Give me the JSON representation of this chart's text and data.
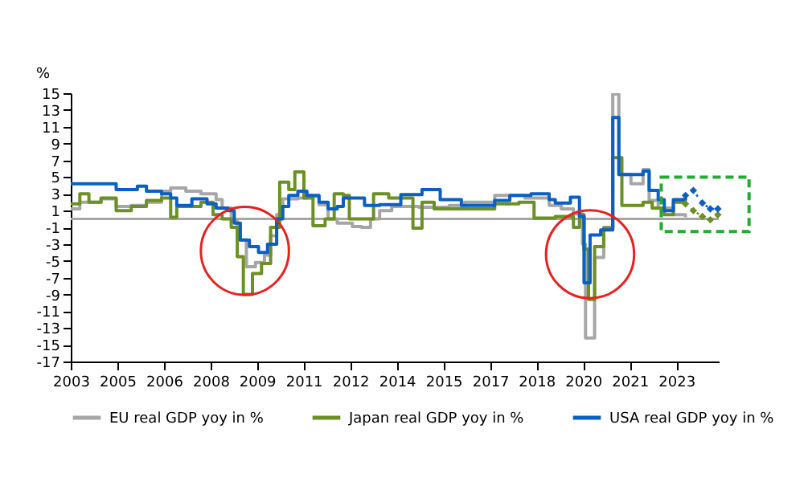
{
  "chart_data": {
    "type": "step",
    "ylabel": "%",
    "legend": "bottom",
    "grid": false,
    "line_style": "solid",
    "xlim": [
      2003,
      2024.4
    ],
    "xticks": [
      {
        "value": 2003,
        "label": "2003"
      },
      {
        "value": 2004.54,
        "label": "2005"
      },
      {
        "value": 2006.08,
        "label": "2006"
      },
      {
        "value": 2007.62,
        "label": "2008"
      },
      {
        "value": 2009.15,
        "label": "2009"
      },
      {
        "value": 2010.69,
        "label": "2011"
      },
      {
        "value": 2012.23,
        "label": "2012"
      },
      {
        "value": 2013.77,
        "label": "2014"
      },
      {
        "value": 2015.31,
        "label": "2015"
      },
      {
        "value": 2016.85,
        "label": "2017"
      },
      {
        "value": 2018.38,
        "label": "2018"
      },
      {
        "value": 2019.92,
        "label": "2020"
      },
      {
        "value": 2021.46,
        "label": "2021"
      },
      {
        "value": 2023,
        "label": "2023"
      }
    ],
    "ylim": [
      -17,
      15
    ],
    "yticks": [
      -17,
      -15,
      -13,
      -11,
      -9,
      -7,
      -5,
      -3,
      -1,
      1,
      3,
      5,
      7,
      9,
      11,
      13,
      15
    ],
    "ref_lines": [
      {
        "axis": "y",
        "value": 0,
        "color": "#a6a6a6"
      }
    ],
    "series": [
      {
        "name": "EU real GDP yoy in %",
        "color": "#a6a6a6",
        "x": [
          2003,
          2003.3,
          2004,
          2004.5,
          2005,
          2005.5,
          2006,
          2006.3,
          2006.8,
          2007.3,
          2007.8,
          2008,
          2008.3,
          2008.5,
          2008.8,
          2009.1,
          2009.4,
          2009.6,
          2009.8,
          2010,
          2010.5,
          2010.8,
          2011.2,
          2011.5,
          2011.8,
          2012.3,
          2012.6,
          2012.9,
          2013.2,
          2013.6,
          2014.5,
          2015.5,
          2016,
          2017,
          2018,
          2018.8,
          2019.2,
          2019.6,
          2019.9,
          2020.0,
          2020.3,
          2020.6,
          2020.9,
          2021.1,
          2021.5,
          2021.9,
          2022.1,
          2022.4,
          2022.9,
          2023.3
        ],
        "values": [
          1.2,
          2.0,
          2.4,
          1.5,
          1.6,
          2.0,
          3.3,
          3.7,
          3.3,
          3.0,
          2.3,
          1.3,
          -0.2,
          -2.5,
          -5.7,
          -5.2,
          -4.3,
          -2.0,
          0.5,
          2.4,
          2.5,
          2.7,
          1.7,
          0.0,
          -0.5,
          -0.9,
          -1.0,
          0.0,
          1.0,
          1.5,
          1.4,
          1.6,
          2.0,
          2.8,
          2.5,
          1.6,
          1.2,
          0.6,
          -3.0,
          -14.2,
          -4.6,
          -1.0,
          14.9,
          5.3,
          4.2,
          5.9,
          2.2,
          1.3,
          0.5,
          0.2
        ]
      },
      {
        "name": "Japan real GDP yoy in %",
        "color": "#6b9023",
        "x": [
          2003,
          2003.3,
          2003.6,
          2004,
          2004.5,
          2005,
          2005.5,
          2006,
          2006.3,
          2006.5,
          2007,
          2007.3,
          2007.7,
          2008,
          2008.3,
          2008.5,
          2008.7,
          2009.0,
          2009.3,
          2009.6,
          2009.9,
          2010.2,
          2010.4,
          2010.7,
          2011.0,
          2011.4,
          2011.7,
          2012.0,
          2012.2,
          2012.8,
          2013.0,
          2013.5,
          2014.3,
          2014.6,
          2015,
          2016,
          2017,
          2017.8,
          2018.3,
          2019,
          2019.6,
          2019.8,
          2019.95,
          2020.1,
          2020.3,
          2020.6,
          2020.9,
          2021.2,
          2021.9,
          2022.2,
          2022.6,
          2022.9,
          2023.3
        ],
        "values": [
          1.8,
          3.0,
          2.0,
          2.5,
          1.0,
          1.5,
          2.2,
          2.5,
          0.2,
          1.5,
          1.5,
          2.0,
          0.5,
          0.0,
          -1.0,
          -4.5,
          -9.0,
          -6.5,
          -5.3,
          -1.0,
          4.4,
          3.5,
          5.6,
          2.5,
          -0.8,
          0.0,
          3.0,
          2.8,
          0.0,
          0.0,
          3.0,
          2.5,
          -1.1,
          2.0,
          1.2,
          1.2,
          1.8,
          2.0,
          0.1,
          0.3,
          -1.0,
          0.5,
          -3.6,
          -9.6,
          -3.3,
          -1.1,
          7.3,
          1.6,
          2.0,
          1.3,
          0.5,
          2.0,
          1.8
        ]
      },
      {
        "name": "USA real GDP yoy in %",
        "color": "#0a5fc4",
        "x": [
          2003,
          2004.3,
          2004.5,
          2005.2,
          2005.5,
          2006,
          2006.3,
          2006.5,
          2007,
          2007.5,
          2007.8,
          2008.2,
          2008.4,
          2008.6,
          2008.9,
          2009.2,
          2009.5,
          2009.8,
          2010.0,
          2010.2,
          2010.5,
          2010.8,
          2011.2,
          2011.5,
          2011.8,
          2012.0,
          2012.5,
          2012.7,
          2013.2,
          2013.9,
          2014.6,
          2015.2,
          2015.9,
          2017,
          2017.5,
          2018.2,
          2018.8,
          2019.0,
          2019.5,
          2019.8,
          2019.95,
          2020.15,
          2020.5,
          2020.9,
          2021.1,
          2021.9,
          2022.1,
          2022.4,
          2022.6,
          2022.9,
          2023.3
        ],
        "values": [
          4.2,
          4.2,
          3.5,
          3.9,
          3.3,
          3.0,
          2.5,
          1.6,
          2.4,
          1.8,
          1.3,
          1.0,
          -0.5,
          -2.5,
          -3.3,
          -4.0,
          -3.0,
          0.0,
          1.5,
          2.8,
          3.3,
          2.8,
          2.0,
          1.2,
          1.5,
          2.5,
          2.5,
          1.6,
          1.7,
          2.9,
          3.5,
          2.3,
          1.6,
          2.2,
          2.8,
          3.0,
          2.3,
          1.9,
          2.6,
          0.3,
          -7.6,
          -1.9,
          -1.3,
          12.1,
          5.3,
          5.7,
          3.4,
          2.3,
          1.0,
          2.3,
          2.8
        ]
      },
      {
        "type": "line",
        "marker": "diamond",
        "line_style": "dotted",
        "color": "#6b9023",
        "x": [
          2023.3,
          2023.56,
          2023.86,
          2024.12,
          2024.37
        ],
        "values": [
          1.8,
          1.0,
          0.3,
          -0.1,
          0.5
        ]
      },
      {
        "type": "line",
        "marker": "diamond",
        "line_style": "dotted",
        "color": "#0a5fc4",
        "x": [
          2023.3,
          2023.56,
          2023.86,
          2024.12,
          2024.37
        ],
        "values": [
          2.8,
          3.4,
          1.9,
          1.2,
          1.2
        ]
      }
    ]
  }
}
